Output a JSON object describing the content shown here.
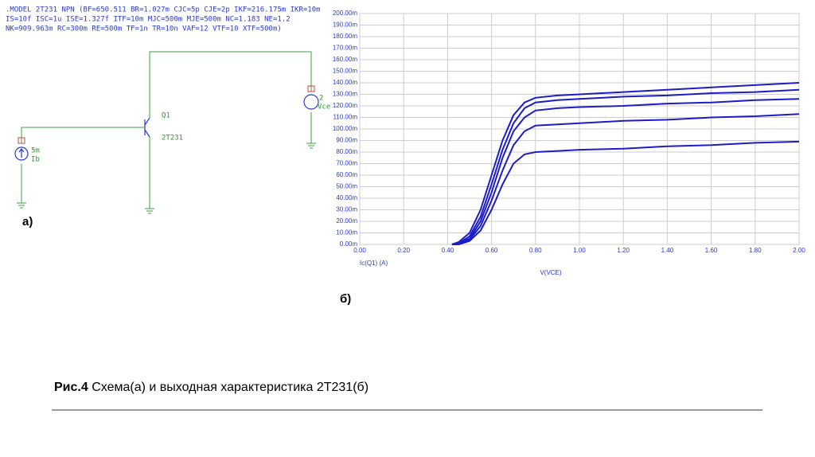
{
  "model_text": [
    ".MODEL 2T231 NPN (BF=650.511 BR=1.027m CJC=5p CJE=2p IKF=216.175m IKR=10m",
    "IS=10f ISC=1u ISE=1.327f ITF=10m MJC=500m MJE=500m NC=1.183 NE=1.2",
    "NK=909.963m RC=300m RE=500m TF=1n TR=10n VAF=12 VTF=10 XTF=500m)"
  ],
  "schematic": {
    "q_label": "Q1",
    "q_model": "2T231",
    "vce_node": "2",
    "vce_label": "Vce",
    "ib_value": "5m",
    "ib_label": "Ib",
    "label": "а)"
  },
  "chart_label": "б)",
  "caption": {
    "prefix": "Рис.4",
    "text": "Схема(а) и выходная характеристика 2Т231(б)"
  },
  "chart_data": {
    "type": "line",
    "xlabel": "V(VCE)",
    "ylabel": "Ic(Q1) (A)",
    "grid": true,
    "x": [
      0.42,
      0.45,
      0.5,
      0.55,
      0.6,
      0.65,
      0.7,
      0.75,
      0.8,
      0.9,
      1.0,
      1.2,
      1.4,
      1.6,
      1.8,
      2.0
    ],
    "series": [
      {
        "color": "#1c1cc8",
        "values": [
          0,
          2,
          10,
          30,
          60,
          90,
          112,
          123,
          127,
          129,
          130,
          132,
          134,
          136,
          138,
          140
        ]
      },
      {
        "color": "#1c1cc8",
        "values": [
          0,
          1,
          7,
          24,
          52,
          82,
          105,
          118,
          123,
          125,
          126,
          128,
          129,
          131,
          132,
          134
        ]
      },
      {
        "color": "#1c1cc8",
        "values": [
          0,
          1,
          5,
          20,
          45,
          75,
          98,
          110,
          116,
          118,
          119,
          120,
          122,
          123,
          125,
          126
        ]
      },
      {
        "color": "#1c1cc8",
        "values": [
          0,
          0,
          4,
          16,
          38,
          64,
          86,
          98,
          103,
          104,
          105,
          107,
          108,
          110,
          111,
          113
        ]
      },
      {
        "color": "#1c1cc8",
        "values": [
          0,
          0,
          3,
          12,
          30,
          52,
          70,
          78,
          80,
          81,
          82,
          83,
          85,
          86,
          88,
          89
        ]
      }
    ],
    "xlim": [
      0,
      2
    ],
    "ylim": [
      0,
      200
    ],
    "xticks": [
      {
        "value": 0,
        "label": "0.00"
      },
      {
        "value": 0.2,
        "label": "0.20"
      },
      {
        "value": 0.4,
        "label": "0.40"
      },
      {
        "value": 0.6,
        "label": "0.60"
      },
      {
        "value": 0.8,
        "label": "0.80"
      },
      {
        "value": 1,
        "label": "1.00"
      },
      {
        "value": 1.2,
        "label": "1.20"
      },
      {
        "value": 1.4,
        "label": "1.40"
      },
      {
        "value": 1.6,
        "label": "1.60"
      },
      {
        "value": 1.8,
        "label": "1.80"
      },
      {
        "value": 2,
        "label": "2.00"
      }
    ],
    "yticks": [
      {
        "value": 0,
        "label": "0.00m"
      },
      {
        "value": 10,
        "label": "10.00m"
      },
      {
        "value": 20,
        "label": "20.00m"
      },
      {
        "value": 30,
        "label": "30.00m"
      },
      {
        "value": 40,
        "label": "40.00m"
      },
      {
        "value": 50,
        "label": "50.00m"
      },
      {
        "value": 60,
        "label": "60.00m"
      },
      {
        "value": 70,
        "label": "70.00m"
      },
      {
        "value": 80,
        "label": "80.00m"
      },
      {
        "value": 90,
        "label": "90.00m"
      },
      {
        "value": 100,
        "label": "100.00m"
      },
      {
        "value": 110,
        "label": "110.00m"
      },
      {
        "value": 120,
        "label": "120.00m"
      },
      {
        "value": 130,
        "label": "130.00m"
      },
      {
        "value": 140,
        "label": "140.00m"
      },
      {
        "value": 150,
        "label": "150.00m"
      },
      {
        "value": 160,
        "label": "160.00m"
      },
      {
        "value": 170,
        "label": "170.00m"
      },
      {
        "value": 180,
        "label": "180.00m"
      },
      {
        "value": 190,
        "label": "190.00m"
      },
      {
        "value": 200,
        "label": "200.00m"
      }
    ]
  }
}
